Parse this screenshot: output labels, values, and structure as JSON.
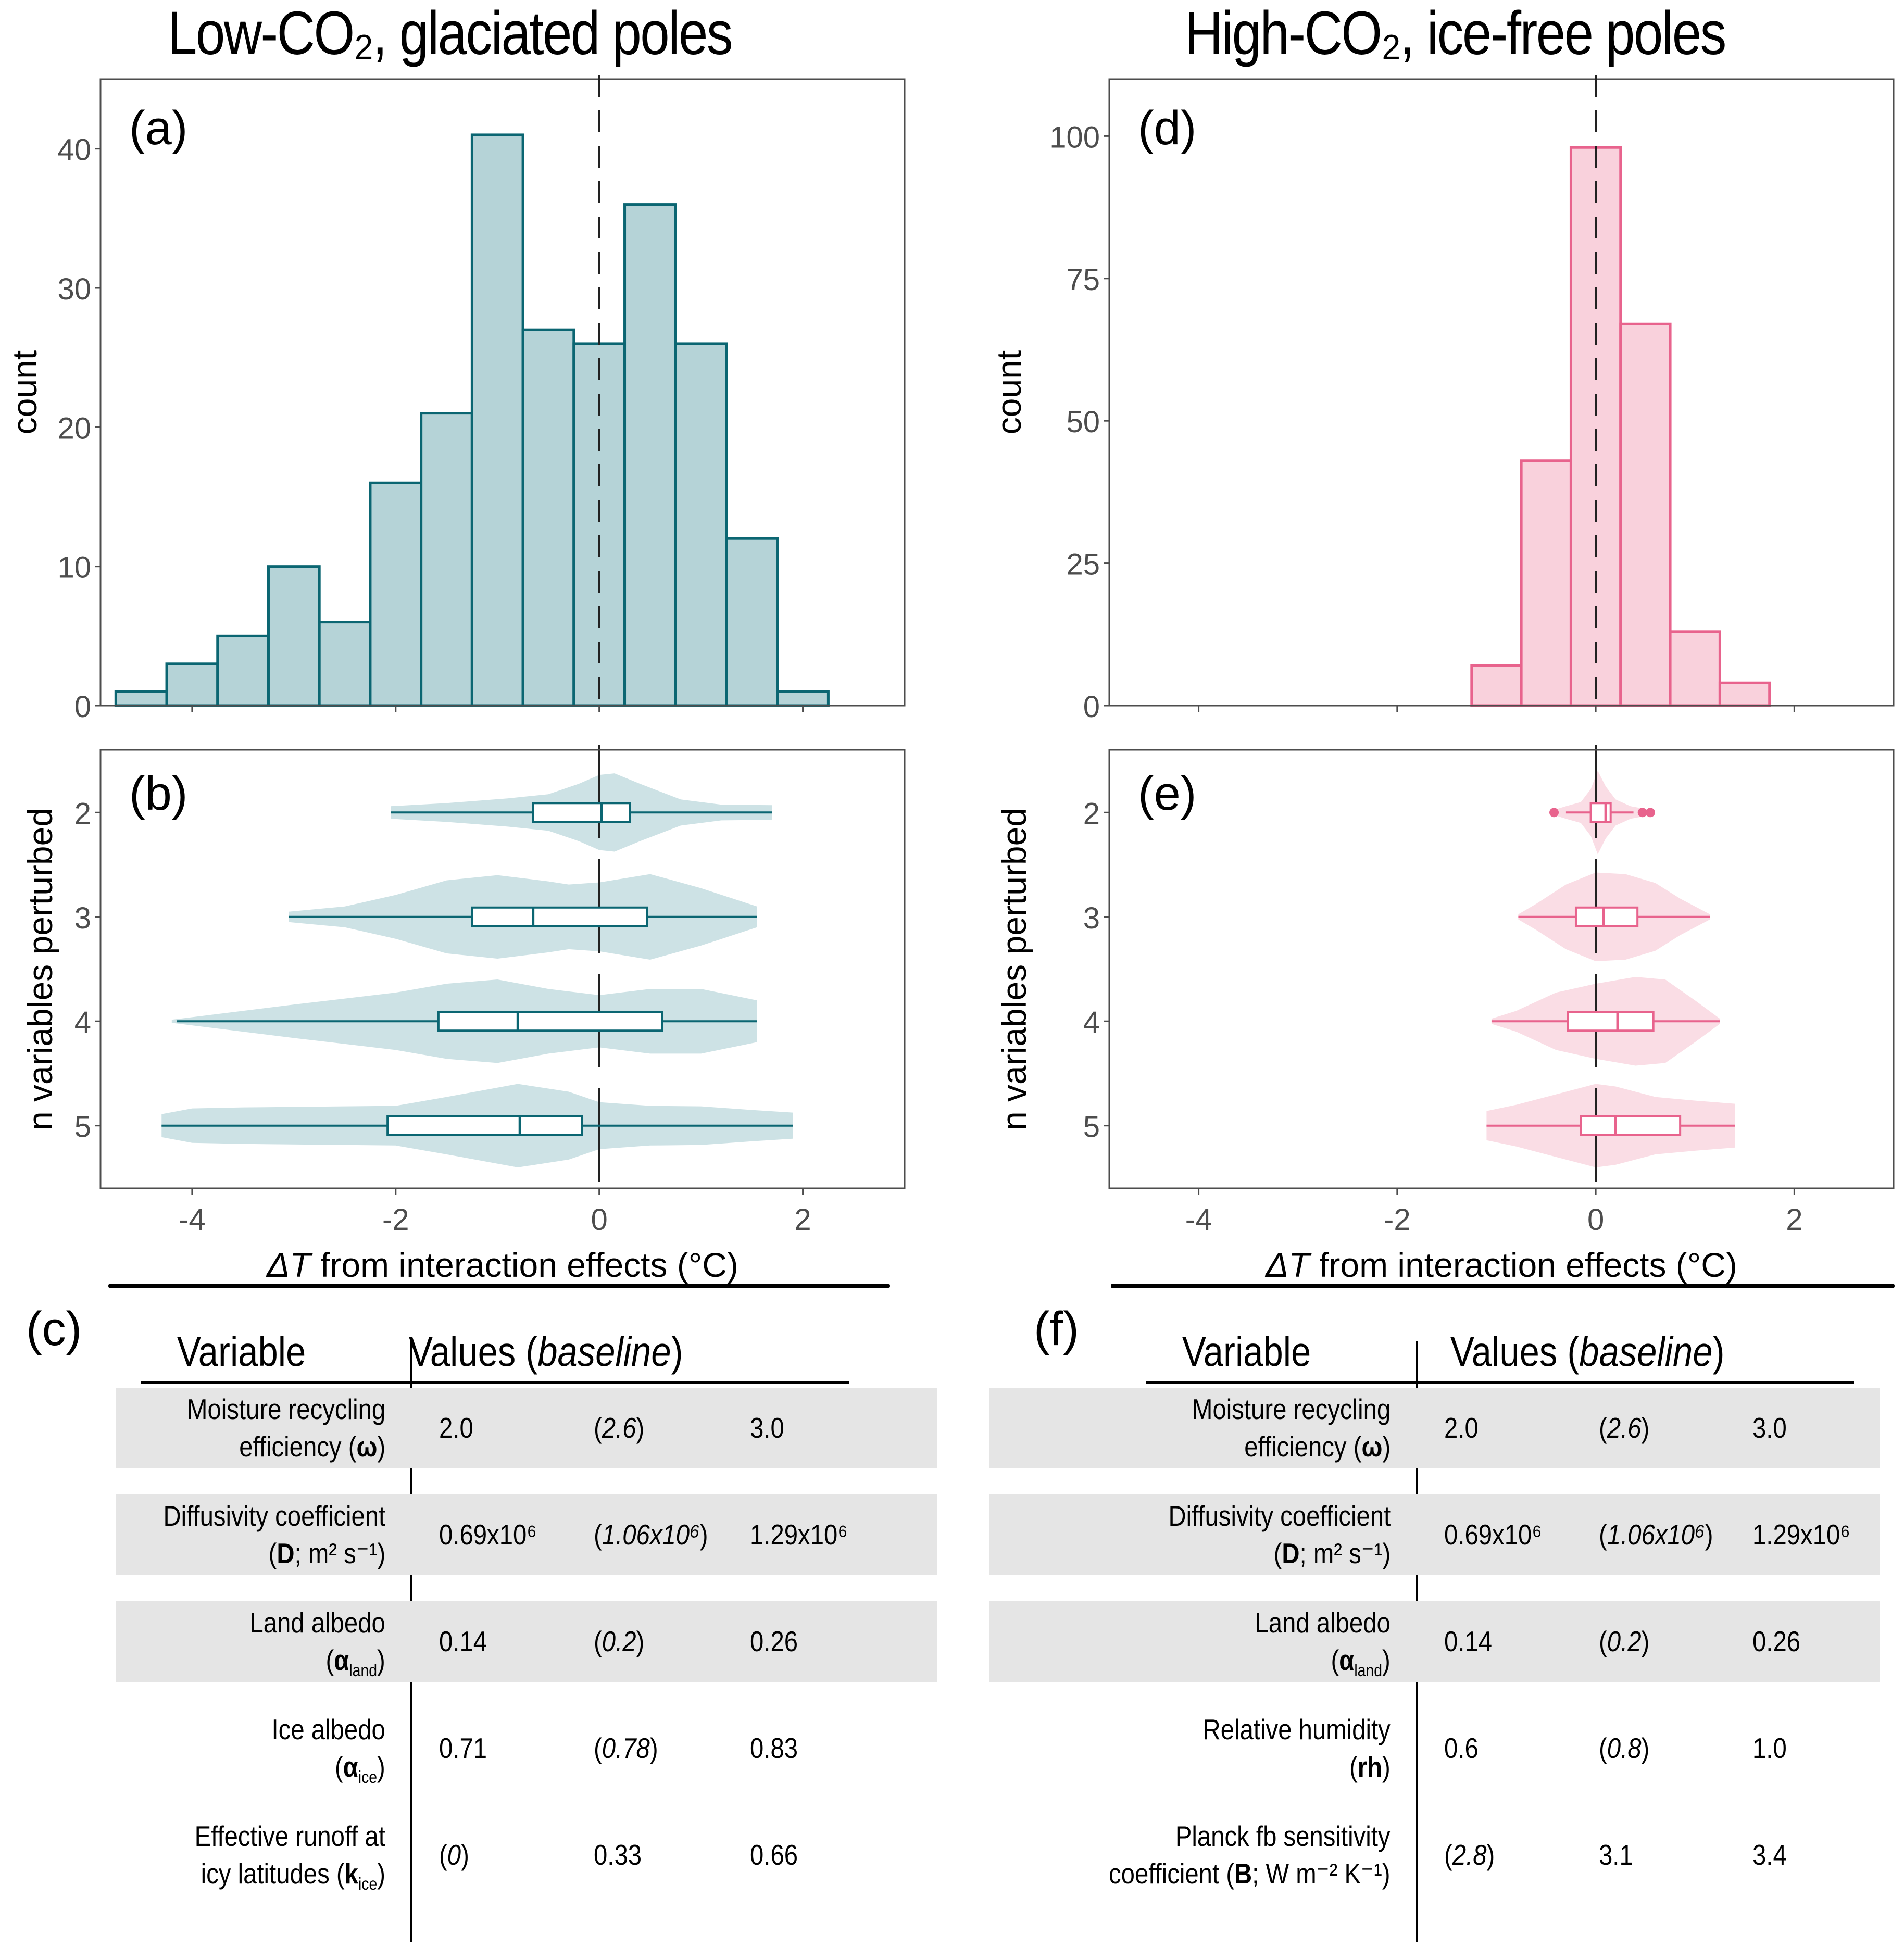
{
  "left": {
    "title": "Low-CO₂, glaciated poles",
    "table_letter": "(c)"
  },
  "right": {
    "title": "High-CO₂, ice-free poles",
    "table_letter": "(f)"
  },
  "colors": {
    "low_fill": "#b5d3d7",
    "low_stroke": "#0b6672",
    "low_violin": "#cde2e5",
    "high_fill": "#f9d1dc",
    "high_stroke": "#e8638d",
    "high_violin": "#fadde5",
    "table_row_shade": "#e5e5e5"
  },
  "chart_data": [
    {
      "id": "a",
      "panel_label": "(a)",
      "type": "bar",
      "subtype": "histogram",
      "bin_width": 0.5,
      "bin_starts": [
        -4.75,
        -4.25,
        -3.75,
        -3.25,
        -2.75,
        -2.25,
        -1.75,
        -1.25,
        -0.75,
        -0.25,
        0.25,
        0.75,
        1.25,
        1.75
      ],
      "values": [
        1,
        3,
        5,
        10,
        6,
        16,
        21,
        41,
        27,
        26,
        36,
        26,
        12,
        1
      ],
      "xlim": [
        -4.9,
        3.0
      ],
      "ylim": [
        0,
        45
      ],
      "yticks": [
        0,
        10,
        20,
        30,
        40
      ],
      "xticks": [
        -4,
        -2,
        0,
        2
      ],
      "ylabel": "count",
      "xlabel": "",
      "reference_line_x": 0,
      "grid": false
    },
    {
      "id": "b",
      "panel_label": "(b)",
      "type": "violin",
      "categories": [
        "2",
        "3",
        "4",
        "5"
      ],
      "ylabel": "n variables perturbed",
      "xlabel_italic": "ΔT",
      "xlabel_rest": " from interaction effects (°C)",
      "xlim": [
        -4.9,
        3.0
      ],
      "xticks": [
        -4,
        -2,
        0,
        2
      ],
      "xtick_labels": [
        "-4",
        "-2",
        "0",
        "2"
      ],
      "reference_line_x": 0,
      "boxes": [
        {
          "n": "2",
          "whisker_low": -2.05,
          "q1": -0.65,
          "median": 0.02,
          "q3": 0.3,
          "whisker_high": 1.7,
          "outliers": []
        },
        {
          "n": "3",
          "whisker_low": -3.05,
          "q1": -1.25,
          "median": -0.65,
          "q3": 0.47,
          "whisker_high": 1.55,
          "outliers": []
        },
        {
          "n": "4",
          "whisker_low": -4.15,
          "q1": -1.58,
          "median": -0.8,
          "q3": 0.62,
          "whisker_high": 1.55,
          "outliers": []
        },
        {
          "n": "5",
          "whisker_low": -4.3,
          "q1": -2.08,
          "median": -0.78,
          "q3": -0.17,
          "whisker_high": 1.9,
          "outliers": []
        }
      ],
      "violins": [
        {
          "n": "2",
          "x": [
            -2.05,
            -1.5,
            -0.9,
            -0.5,
            -0.2,
            0.0,
            0.15,
            0.4,
            0.8,
            1.2,
            1.7
          ],
          "half_width": [
            0.12,
            0.18,
            0.27,
            0.35,
            0.55,
            0.72,
            0.75,
            0.55,
            0.25,
            0.15,
            0.14
          ]
        },
        {
          "n": "3",
          "x": [
            -3.05,
            -2.5,
            -2.0,
            -1.5,
            -1.0,
            -0.5,
            -0.3,
            0.0,
            0.5,
            1.0,
            1.55
          ],
          "half_width": [
            0.1,
            0.2,
            0.42,
            0.7,
            0.8,
            0.68,
            0.62,
            0.66,
            0.82,
            0.55,
            0.2
          ]
        },
        {
          "n": "4",
          "x": [
            -4.2,
            -3.5,
            -3.0,
            -2.0,
            -1.5,
            -1.0,
            -0.5,
            0.0,
            0.5,
            1.0,
            1.55
          ],
          "half_width": [
            0.03,
            0.2,
            0.32,
            0.55,
            0.72,
            0.8,
            0.62,
            0.5,
            0.62,
            0.62,
            0.4
          ]
        },
        {
          "n": "5",
          "x": [
            -4.3,
            -4.0,
            -3.5,
            -2.0,
            -1.5,
            -0.8,
            -0.3,
            0.0,
            0.5,
            1.0,
            1.5,
            1.9
          ],
          "half_width": [
            0.22,
            0.33,
            0.35,
            0.38,
            0.55,
            0.8,
            0.65,
            0.45,
            0.38,
            0.37,
            0.3,
            0.25
          ]
        }
      ]
    },
    {
      "id": "d",
      "panel_label": "(d)",
      "type": "bar",
      "subtype": "histogram",
      "bin_width": 0.5,
      "bin_starts": [
        -1.25,
        -0.75,
        -0.25,
        0.25,
        0.75,
        1.25
      ],
      "values": [
        7,
        43,
        98,
        67,
        13,
        4
      ],
      "xlim": [
        -4.9,
        3.0
      ],
      "ylim": [
        0,
        110
      ],
      "yticks": [
        0,
        25,
        50,
        75,
        100
      ],
      "xticks": [
        -4,
        -2,
        0,
        2
      ],
      "ylabel": "count",
      "xlabel": "",
      "reference_line_x": 0,
      "grid": false
    },
    {
      "id": "e",
      "panel_label": "(e)",
      "type": "violin",
      "categories": [
        "2",
        "3",
        "4",
        "5"
      ],
      "ylabel": "n variables perturbed",
      "xlabel_italic": "ΔT",
      "xlabel_rest": " from interaction effects (°C)",
      "xlim": [
        -4.9,
        3.0
      ],
      "xticks": [
        -4,
        -2,
        0,
        2
      ],
      "xtick_labels": [
        "-4",
        "-2",
        "0",
        "2"
      ],
      "reference_line_x": 0,
      "boxes": [
        {
          "n": "2",
          "whisker_low": -0.3,
          "q1": -0.05,
          "median": 0.1,
          "q3": 0.15,
          "whisker_high": 0.38,
          "outliers": [
            -0.42,
            0.47,
            0.55
          ]
        },
        {
          "n": "3",
          "whisker_low": -0.78,
          "q1": -0.2,
          "median": 0.08,
          "q3": 0.42,
          "whisker_high": 1.15,
          "outliers": []
        },
        {
          "n": "4",
          "whisker_low": -1.05,
          "q1": -0.28,
          "median": 0.22,
          "q3": 0.58,
          "whisker_high": 1.25,
          "outliers": []
        },
        {
          "n": "5",
          "whisker_low": -1.1,
          "q1": -0.15,
          "median": 0.2,
          "q3": 0.85,
          "whisker_high": 1.4,
          "outliers": []
        }
      ],
      "violins": [
        {
          "n": "2",
          "x": [
            -0.42,
            -0.3,
            -0.15,
            -0.05,
            0.02,
            0.1,
            0.2,
            0.35,
            0.55
          ],
          "half_width": [
            0.05,
            0.12,
            0.2,
            0.45,
            0.8,
            0.5,
            0.25,
            0.12,
            0.05
          ]
        },
        {
          "n": "3",
          "x": [
            -0.78,
            -0.6,
            -0.3,
            0.0,
            0.3,
            0.6,
            0.85,
            1.15
          ],
          "half_width": [
            0.05,
            0.25,
            0.62,
            0.85,
            0.82,
            0.65,
            0.35,
            0.05
          ]
        },
        {
          "n": "4",
          "x": [
            -1.05,
            -0.8,
            -0.4,
            0.0,
            0.4,
            0.7,
            1.0,
            1.25
          ],
          "half_width": [
            0.05,
            0.2,
            0.55,
            0.72,
            0.85,
            0.8,
            0.4,
            0.05
          ]
        },
        {
          "n": "5",
          "x": [
            -1.1,
            -0.8,
            -0.4,
            0.0,
            0.2,
            0.6,
            1.0,
            1.4
          ],
          "half_width": [
            0.28,
            0.4,
            0.6,
            0.8,
            0.75,
            0.55,
            0.48,
            0.42
          ]
        }
      ]
    }
  ],
  "tables": {
    "header_variable": "Variable",
    "header_values_prefix": "Values (",
    "header_values_italic": "baseline",
    "header_values_suffix": ")",
    "left_rows": [
      {
        "name_line1": "Moisture recycling",
        "name_line2_pre": "efficiency (",
        "symbol": "ω",
        "sub": "",
        "units": "",
        "name_line2_post": ")",
        "values": [
          "2.0",
          "2.6",
          "3.0"
        ],
        "baseline_index": 1,
        "shaded": true
      },
      {
        "name_line1": "Diffusivity coefficient",
        "name_line2_pre": "(",
        "symbol": "D",
        "sub": "",
        "units": "; m² s⁻¹",
        "name_line2_post": ")",
        "values": [
          "0.69x10⁶",
          "1.06x10⁶",
          "1.29x10⁶"
        ],
        "baseline_index": 1,
        "shaded": true
      },
      {
        "name_line1": "Land albedo",
        "name_line2_pre": "(",
        "symbol": "α",
        "sub": "land",
        "units": "",
        "name_line2_post": ")",
        "values": [
          "0.14",
          "0.2",
          "0.26"
        ],
        "baseline_index": 1,
        "shaded": true
      },
      {
        "name_line1": "Ice albedo",
        "name_line2_pre": "(",
        "symbol": "α",
        "sub": "ice",
        "units": "",
        "name_line2_post": ")",
        "values": [
          "0.71",
          "0.78",
          "0.83"
        ],
        "baseline_index": 1,
        "shaded": false
      },
      {
        "name_line1": "Effective runoff at",
        "name_line2_pre": "icy latitudes (",
        "symbol": "k",
        "sub": "ice",
        "units": "",
        "name_line2_post": ")",
        "values": [
          "0",
          "0.33",
          "0.66"
        ],
        "baseline_index": 0,
        "shaded": false
      }
    ],
    "right_rows": [
      {
        "name_line1": "Moisture recycling",
        "name_line2_pre": "efficiency (",
        "symbol": "ω",
        "sub": "",
        "units": "",
        "name_line2_post": ")",
        "values": [
          "2.0",
          "2.6",
          "3.0"
        ],
        "baseline_index": 1,
        "shaded": true
      },
      {
        "name_line1": "Diffusivity coefficient",
        "name_line2_pre": "(",
        "symbol": "D",
        "sub": "",
        "units": "; m² s⁻¹",
        "name_line2_post": ")",
        "values": [
          "0.69x10⁶",
          "1.06x10⁶",
          "1.29x10⁶"
        ],
        "baseline_index": 1,
        "shaded": true
      },
      {
        "name_line1": "Land albedo",
        "name_line2_pre": "(",
        "symbol": "α",
        "sub": "land",
        "units": "",
        "name_line2_post": ")",
        "values": [
          "0.14",
          "0.2",
          "0.26"
        ],
        "baseline_index": 1,
        "shaded": true
      },
      {
        "name_line1": "Relative humidity",
        "name_line2_pre": "(",
        "symbol": "rh",
        "sub": "",
        "units": "",
        "name_line2_post": ")",
        "values": [
          "0.6",
          "0.8",
          "1.0"
        ],
        "baseline_index": 1,
        "shaded": false
      },
      {
        "name_line1": "Planck fb sensitivity",
        "name_line2_pre": "coefficient (",
        "symbol": "B",
        "sub": "",
        "units": "; W m⁻² K⁻¹",
        "name_line2_post": ")",
        "values": [
          "2.8",
          "3.1",
          "3.4"
        ],
        "baseline_index": 0,
        "shaded": false
      }
    ]
  }
}
